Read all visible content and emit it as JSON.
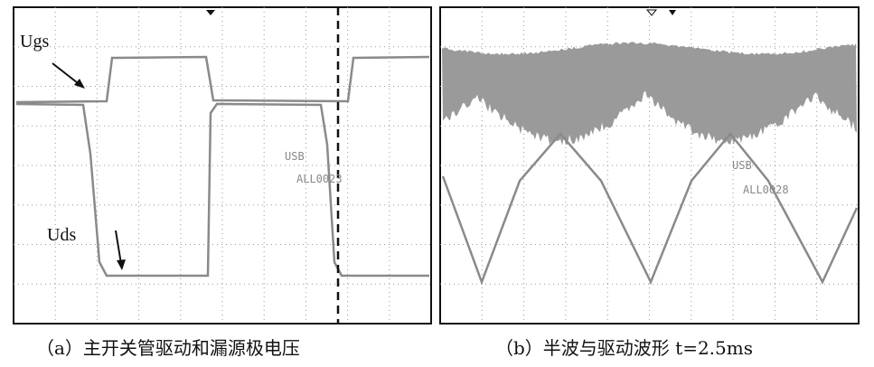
{
  "panels": [
    {
      "annotations": [
        "Ugs",
        "Uds"
      ],
      "scope_text": [
        "USB",
        "ALL0023"
      ],
      "caption": "（a）主开关管驱动和漏源极电压"
    },
    {
      "scope_text": [
        "USB",
        "ALL0028"
      ],
      "caption": "（b）半波与驱动波形  t=2.5ms"
    }
  ]
}
